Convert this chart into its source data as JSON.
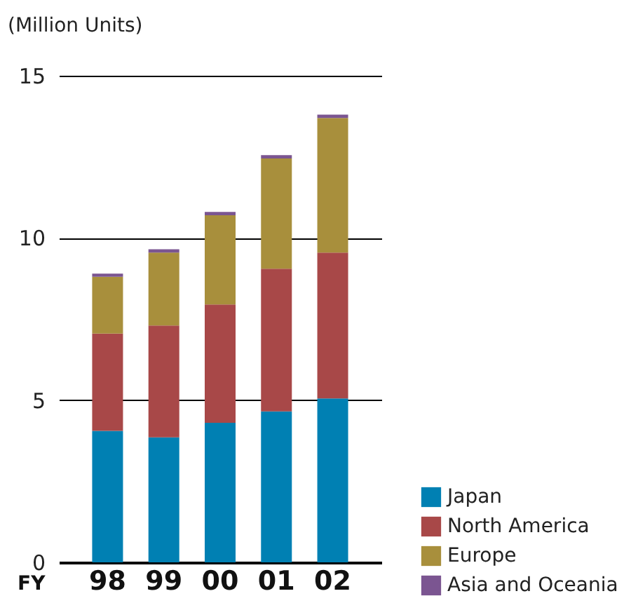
{
  "chart_data": {
    "type": "bar",
    "stacked": true,
    "ylabel": "(Million Units)",
    "xlabel": "FY",
    "categories": [
      "98",
      "99",
      "00",
      "01",
      "02"
    ],
    "series": [
      {
        "name": "Japan",
        "color": "#0080b3",
        "values": [
          4.05,
          3.85,
          4.3,
          4.65,
          5.05
        ]
      },
      {
        "name": "North America",
        "color": "#a84848",
        "values": [
          3.0,
          3.45,
          3.65,
          4.4,
          4.5
        ]
      },
      {
        "name": "Europe",
        "color": "#a88f3c",
        "values": [
          1.75,
          2.25,
          2.75,
          3.4,
          4.15
        ]
      },
      {
        "name": "Asia and Oceania",
        "color": "#7b5591",
        "values": [
          0.1,
          0.1,
          0.1,
          0.1,
          0.1
        ]
      }
    ],
    "ylim": [
      0,
      15
    ],
    "yticks": [
      0,
      5,
      10,
      15
    ],
    "grid": "y",
    "legend": "bottom right"
  }
}
